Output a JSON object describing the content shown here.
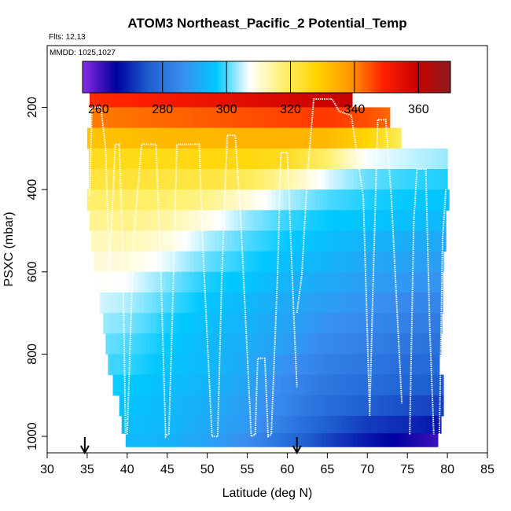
{
  "chart_data": {
    "type": "heatmap",
    "title": "ATOM3 Northeast_Pacific_2 Potential_Temp",
    "flights_label": "Flts: 12,13",
    "date_label": "MMDD: 1025,1027",
    "xlabel": "Latitude (deg N)",
    "ylabel": "PSXC (mbar)",
    "xlim": [
      30,
      85
    ],
    "ylim": [
      1040,
      50
    ],
    "x_ticks": [
      30,
      35,
      40,
      45,
      50,
      55,
      60,
      65,
      70,
      75,
      80,
      85
    ],
    "y_ticks": [
      200,
      400,
      600,
      800,
      1000
    ],
    "colorbar": {
      "range": [
        255,
        370
      ],
      "ticks": [
        260,
        280,
        300,
        320,
        340,
        360
      ],
      "colors": [
        "#8a2be2",
        "#0000a0",
        "#1f5fd0",
        "#3a8ff0",
        "#00c8ff",
        "#ffffff",
        "#fff070",
        "#ffd400",
        "#ff9800",
        "#ff2000",
        "#c80000",
        "#8b1a1a"
      ]
    },
    "arrows_at_lat": [
      34.7,
      61.2
    ],
    "pressure_levels": [
      175,
      225,
      275,
      325,
      375,
      425,
      475,
      525,
      575,
      625,
      675,
      725,
      775,
      825,
      875,
      925,
      975,
      1010
    ],
    "level_ranges": [
      [
        35.3,
        68.1
      ],
      [
        35.5,
        72.8
      ],
      [
        35.0,
        74.2
      ],
      [
        35.2,
        80.0
      ],
      [
        35.2,
        80.0
      ],
      [
        35.0,
        80.2
      ],
      [
        35.3,
        79.8
      ],
      [
        35.5,
        79.8
      ],
      [
        35.8,
        79.5
      ],
      [
        36.3,
        79.4
      ],
      [
        36.6,
        79.4
      ],
      [
        37.0,
        79.3
      ],
      [
        37.3,
        79.2
      ],
      [
        37.6,
        79.0
      ],
      [
        38.2,
        79.5
      ],
      [
        39.0,
        79.5
      ],
      [
        39.3,
        79.2
      ],
      [
        39.8,
        78.8
      ]
    ],
    "theta_profile": {
      "latitude": [
        35,
        40,
        45,
        50,
        55,
        60,
        65,
        70,
        75,
        80
      ],
      "levels": [
        [
          348,
          349,
          351,
          353,
          355,
          357,
          359,
          361,
          363,
          364
        ],
        [
          341,
          342,
          343,
          344,
          345,
          346,
          347,
          345,
          341,
          338
        ],
        [
          331,
          332,
          333,
          333,
          334,
          334,
          333,
          328,
          318,
          314
        ],
        [
          325,
          326,
          326,
          327,
          327,
          325,
          318,
          307,
          305,
          303
        ],
        [
          322,
          323,
          322,
          322,
          320,
          314,
          306,
          301,
          299,
          298
        ],
        [
          318,
          319,
          318,
          316,
          310,
          304,
          300,
          298,
          297,
          296
        ],
        [
          315,
          316,
          314,
          309,
          303,
          299,
          297,
          296,
          295,
          294
        ],
        [
          312,
          313,
          310,
          304,
          300,
          297,
          295,
          293,
          292,
          291
        ],
        [
          310,
          310,
          306,
          301,
          298,
          295,
          293,
          291,
          290,
          289
        ],
        [
          308,
          307,
          302,
          298,
          296,
          293,
          291,
          289,
          288,
          287
        ],
        [
          306,
          304,
          300,
          296,
          294,
          291,
          289,
          287,
          285,
          284
        ],
        [
          304,
          302,
          298,
          295,
          293,
          290,
          287,
          285,
          283,
          282
        ],
        [
          302,
          300,
          297,
          294,
          292,
          289,
          285,
          283,
          281,
          280
        ],
        [
          300,
          299,
          296,
          294,
          291,
          287,
          283,
          281,
          279,
          278
        ],
        [
          298,
          297,
          295,
          293,
          290,
          285,
          281,
          279,
          277,
          275
        ],
        [
          297,
          296,
          294,
          292,
          289,
          284,
          279,
          276,
          274,
          272
        ],
        [
          296,
          295,
          294,
          291,
          288,
          282,
          276,
          272,
          270,
          267
        ],
        [
          295,
          294,
          293,
          290,
          286,
          279,
          273,
          268,
          264,
          260
        ]
      ]
    }
  }
}
